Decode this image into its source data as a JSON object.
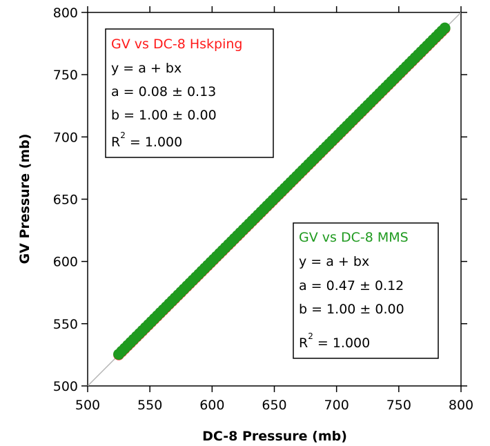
{
  "chart_data": {
    "type": "scatter",
    "xlabel": "DC-8 Pressure (mb)",
    "ylabel": "GV Pressure (mb)",
    "xlim": [
      500,
      800
    ],
    "ylim": [
      500,
      800
    ],
    "x_ticks": [
      500,
      550,
      600,
      650,
      700,
      750,
      800
    ],
    "y_ticks": [
      500,
      550,
      600,
      650,
      700,
      750,
      800
    ],
    "grid": false,
    "reference_line": {
      "slope": 1,
      "intercept": 0,
      "color": "#b5b5b5"
    },
    "series": [
      {
        "name": "GV vs DC-8 Hskping",
        "color": "#ff1a1a",
        "fit": {
          "equation": "y = a + bx",
          "a": "a = 0.08 ± 0.13",
          "b": "b = 1.00 ± 0.00",
          "r2_label": "R",
          "r2_exp": "2",
          "r2_value": " = 1.000"
        },
        "x_range": [
          525,
          787
        ],
        "intercept": 0.08,
        "slope": 1.0
      },
      {
        "name": "GV vs DC-8 MMS",
        "color": "#1f9a1f",
        "fit": {
          "equation": "y = a + bx",
          "a": "a = 0.47 ± 0.12",
          "b": "b = 1.00 ± 0.00",
          "r2_label": "R",
          "r2_exp": "2",
          "r2_value": " = 1.000"
        },
        "x_range": [
          525,
          787
        ],
        "intercept": 0.47,
        "slope": 1.0
      }
    ]
  }
}
